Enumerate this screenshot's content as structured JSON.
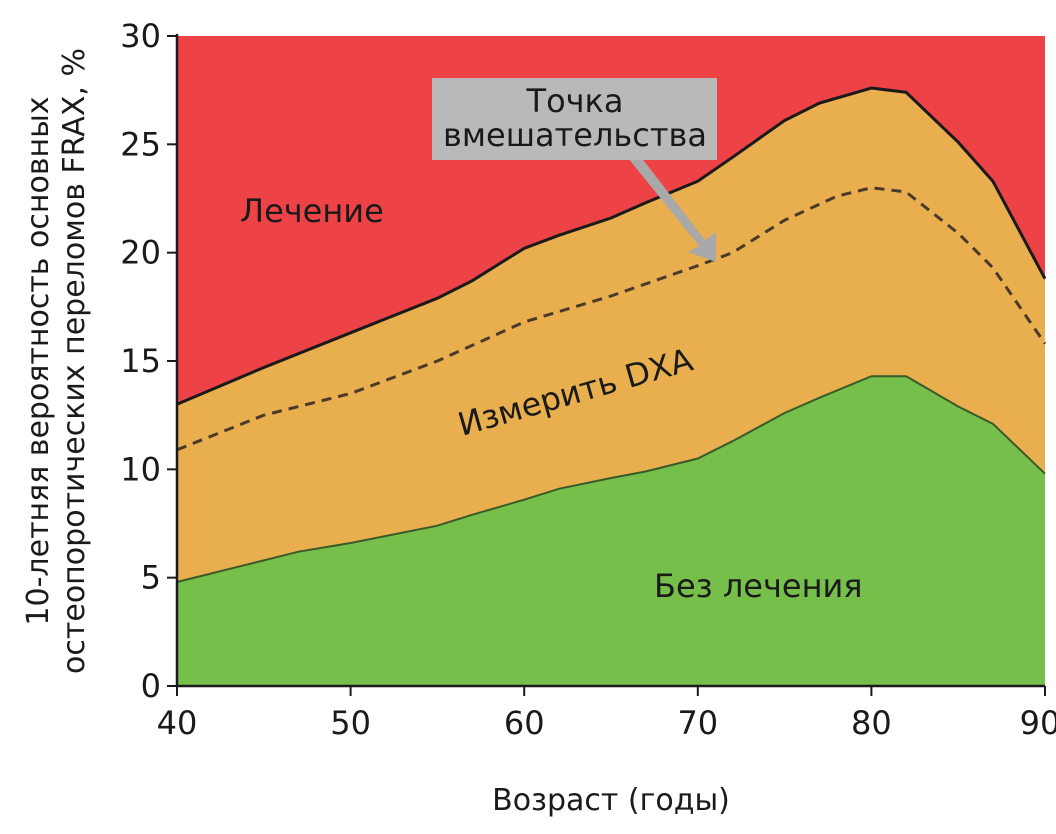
{
  "chart_data": {
    "type": "area",
    "title": "",
    "xlabel": "Возраст (годы)",
    "ylabel_lines": [
      "10-летняя вероятность основных",
      "остеопоротических переломов FRAX, %"
    ],
    "xlim": [
      40,
      90
    ],
    "ylim": [
      0,
      30
    ],
    "xticks": [
      40,
      50,
      60,
      70,
      80,
      90
    ],
    "yticks": [
      0,
      5,
      10,
      15,
      20,
      25,
      30
    ],
    "grid": false,
    "colors": {
      "treatment": "#ee4346",
      "measure": "#e9af4e",
      "no_treatment": "#76bf4b",
      "line": "#1a1a1a",
      "dashed": "#4a3a2a",
      "callout": "#b9b9b9",
      "arrow": "#a9a9a9"
    },
    "upper_threshold": {
      "x": [
        40,
        45,
        50,
        55,
        57,
        60,
        62,
        65,
        67,
        70,
        72,
        75,
        77,
        80,
        82,
        85,
        87,
        90
      ],
      "y": [
        13.0,
        14.7,
        16.3,
        17.9,
        18.7,
        20.2,
        20.8,
        21.6,
        22.3,
        23.3,
        24.4,
        26.1,
        26.9,
        27.6,
        27.4,
        25.1,
        23.3,
        18.8
      ]
    },
    "lower_threshold": {
      "x": [
        40,
        44,
        47,
        50,
        55,
        57,
        60,
        62,
        65,
        67,
        70,
        72,
        75,
        77,
        80,
        82,
        85,
        87,
        90
      ],
      "y": [
        4.8,
        5.6,
        6.2,
        6.6,
        7.4,
        7.9,
        8.6,
        9.1,
        9.6,
        9.9,
        10.5,
        11.3,
        12.6,
        13.3,
        14.3,
        14.3,
        12.9,
        12.1,
        9.8
      ]
    },
    "intervention_line": {
      "style": "dashed",
      "x": [
        40,
        45,
        50,
        55,
        60,
        65,
        70,
        72,
        75,
        78,
        80,
        82,
        85,
        87,
        90
      ],
      "y": [
        10.9,
        12.5,
        13.5,
        15.0,
        16.8,
        18.0,
        19.4,
        20.0,
        21.5,
        22.6,
        23.0,
        22.8,
        20.9,
        19.3,
        15.8
      ]
    },
    "region_labels": {
      "treatment": "Лечение",
      "measure": "Измерить DXA",
      "no_treatment": "Без лечения"
    },
    "annotation": {
      "lines": [
        "Точка",
        "вмешательства"
      ],
      "points_to": {
        "x": 71.5,
        "y": 19.7
      }
    }
  }
}
